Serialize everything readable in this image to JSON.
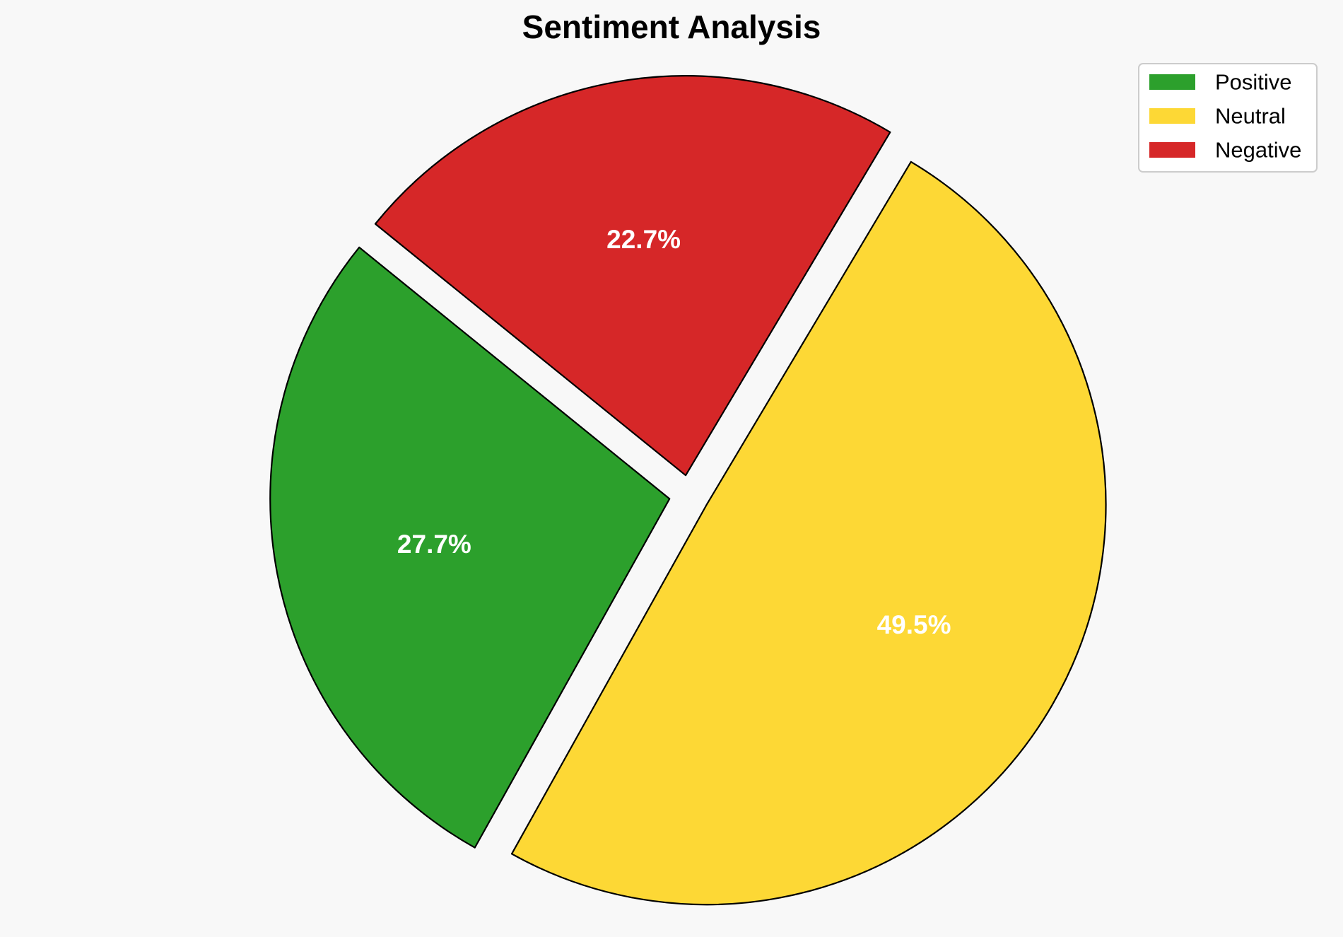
{
  "chart_data": {
    "type": "pie",
    "title": "Sentiment Analysis",
    "slices": [
      {
        "name": "Positive",
        "value": 27.7,
        "label": "27.7%",
        "color": "#2ca02c",
        "exploded": true
      },
      {
        "name": "Neutral",
        "value": 49.5,
        "label": "49.5%",
        "color": "#fdd835",
        "exploded": true
      },
      {
        "name": "Negative",
        "value": 22.7,
        "label": "22.7%",
        "color": "#d62728",
        "exploded": true
      }
    ],
    "legend": {
      "placement": "top-right",
      "entries": [
        "Positive",
        "Neutral",
        "Negative"
      ]
    },
    "edge_color": "#000000"
  }
}
